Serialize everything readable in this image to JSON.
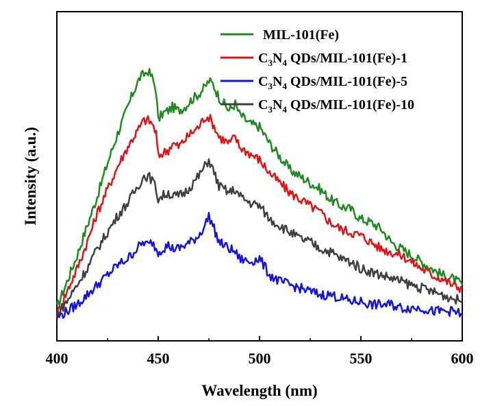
{
  "chart_data": {
    "type": "line",
    "title": "",
    "xlabel": "Wavelength (nm)",
    "ylabel": "Intensity (a.u.)",
    "xlim": [
      400,
      600
    ],
    "ylim": [
      0,
      1.0
    ],
    "x_ticks": [
      400,
      450,
      500,
      550,
      600
    ],
    "y_ticks_shown": false,
    "grid": false,
    "legend_position": "top-right",
    "series": [
      {
        "name": "MIL-101(Fe)",
        "legend_parts": [
          {
            "t": "MIL-101(Fe)",
            "sub": false
          }
        ],
        "color": "#1f8a1f",
        "x": [
          400,
          405,
          410,
          415,
          420,
          425,
          430,
          435,
          438,
          441,
          443,
          445,
          447,
          449,
          450,
          452,
          455,
          457,
          460,
          463,
          466,
          470,
          473,
          475,
          477,
          480,
          485,
          488,
          490,
          495,
          500,
          505,
          510,
          515,
          520,
          525,
          530,
          535,
          540,
          545,
          550,
          555,
          560,
          565,
          570,
          575,
          580,
          585,
          590,
          595,
          600
        ],
        "y": [
          0.1,
          0.18,
          0.26,
          0.35,
          0.44,
          0.54,
          0.63,
          0.71,
          0.76,
          0.8,
          0.81,
          0.82,
          0.8,
          0.76,
          0.67,
          0.69,
          0.7,
          0.71,
          0.7,
          0.71,
          0.73,
          0.75,
          0.77,
          0.79,
          0.78,
          0.74,
          0.7,
          0.72,
          0.69,
          0.66,
          0.65,
          0.6,
          0.56,
          0.52,
          0.5,
          0.48,
          0.46,
          0.43,
          0.41,
          0.4,
          0.37,
          0.36,
          0.34,
          0.3,
          0.28,
          0.26,
          0.24,
          0.22,
          0.2,
          0.19,
          0.17
        ]
      },
      {
        "name": "C3N4 QDs/MIL-101(Fe)-1",
        "legend_parts": [
          {
            "t": "C",
            "sub": false
          },
          {
            "t": "3",
            "sub": true
          },
          {
            "t": "N",
            "sub": false
          },
          {
            "t": "4",
            "sub": true
          },
          {
            "t": " QDs/MIL-101(Fe)-1",
            "sub": false
          }
        ],
        "color": "#e01414",
        "x": [
          400,
          405,
          410,
          415,
          420,
          425,
          430,
          435,
          438,
          441,
          443,
          445,
          447,
          449,
          450,
          452,
          455,
          457,
          460,
          463,
          466,
          470,
          473,
          475,
          477,
          480,
          485,
          488,
          490,
          495,
          500,
          505,
          510,
          515,
          520,
          525,
          530,
          535,
          540,
          545,
          550,
          555,
          560,
          565,
          570,
          575,
          580,
          585,
          590,
          595,
          600
        ],
        "y": [
          0.08,
          0.15,
          0.22,
          0.3,
          0.39,
          0.46,
          0.53,
          0.59,
          0.62,
          0.65,
          0.67,
          0.67,
          0.66,
          0.63,
          0.56,
          0.57,
          0.58,
          0.6,
          0.59,
          0.61,
          0.63,
          0.65,
          0.68,
          0.68,
          0.66,
          0.62,
          0.6,
          0.62,
          0.59,
          0.57,
          0.55,
          0.51,
          0.48,
          0.45,
          0.43,
          0.41,
          0.39,
          0.36,
          0.34,
          0.33,
          0.32,
          0.3,
          0.28,
          0.27,
          0.26,
          0.24,
          0.22,
          0.2,
          0.19,
          0.17,
          0.16
        ]
      },
      {
        "name": "C3N4 QDs/MIL-101(Fe)-5",
        "legend_parts": [
          {
            "t": "C",
            "sub": false
          },
          {
            "t": "3",
            "sub": true
          },
          {
            "t": "N",
            "sub": false
          },
          {
            "t": "4",
            "sub": true
          },
          {
            "t": " QDs/MIL-101(Fe)-5",
            "sub": false
          }
        ],
        "color": "#1414e0",
        "x": [
          400,
          405,
          410,
          415,
          420,
          425,
          430,
          435,
          438,
          441,
          443,
          445,
          447,
          449,
          450,
          452,
          455,
          457,
          460,
          463,
          466,
          470,
          473,
          475,
          477,
          480,
          485,
          488,
          490,
          495,
          500,
          505,
          510,
          515,
          520,
          525,
          530,
          535,
          540,
          545,
          550,
          555,
          560,
          565,
          570,
          575,
          580,
          585,
          590,
          595,
          600
        ],
        "y": [
          0.07,
          0.09,
          0.11,
          0.14,
          0.17,
          0.2,
          0.23,
          0.25,
          0.27,
          0.29,
          0.3,
          0.29,
          0.3,
          0.28,
          0.27,
          0.28,
          0.29,
          0.28,
          0.28,
          0.29,
          0.3,
          0.32,
          0.35,
          0.38,
          0.35,
          0.3,
          0.28,
          0.27,
          0.25,
          0.24,
          0.25,
          0.2,
          0.18,
          0.17,
          0.16,
          0.15,
          0.14,
          0.14,
          0.13,
          0.12,
          0.12,
          0.11,
          0.11,
          0.11,
          0.1,
          0.1,
          0.1,
          0.09,
          0.09,
          0.09,
          0.08
        ]
      },
      {
        "name": "C3N4 QDs/MIL-101(Fe)-10",
        "legend_parts": [
          {
            "t": "C",
            "sub": false
          },
          {
            "t": "3",
            "sub": true
          },
          {
            "t": "N",
            "sub": false
          },
          {
            "t": "4",
            "sub": true
          },
          {
            "t": " QDs/MIL-101(Fe)-10",
            "sub": false
          }
        ],
        "color": "#404040",
        "x": [
          400,
          405,
          410,
          415,
          420,
          425,
          430,
          435,
          438,
          441,
          443,
          445,
          447,
          449,
          450,
          452,
          455,
          457,
          460,
          463,
          466,
          470,
          473,
          475,
          477,
          480,
          485,
          488,
          490,
          495,
          500,
          505,
          510,
          515,
          520,
          525,
          530,
          535,
          540,
          545,
          550,
          555,
          560,
          565,
          570,
          575,
          580,
          585,
          590,
          595,
          600
        ],
        "y": [
          0.08,
          0.12,
          0.17,
          0.22,
          0.28,
          0.33,
          0.38,
          0.42,
          0.45,
          0.48,
          0.5,
          0.5,
          0.49,
          0.46,
          0.43,
          0.44,
          0.45,
          0.44,
          0.44,
          0.45,
          0.47,
          0.5,
          0.53,
          0.55,
          0.52,
          0.47,
          0.45,
          0.46,
          0.44,
          0.42,
          0.41,
          0.37,
          0.35,
          0.33,
          0.31,
          0.3,
          0.28,
          0.27,
          0.25,
          0.24,
          0.22,
          0.21,
          0.2,
          0.19,
          0.18,
          0.17,
          0.16,
          0.15,
          0.14,
          0.13,
          0.12
        ]
      }
    ]
  }
}
